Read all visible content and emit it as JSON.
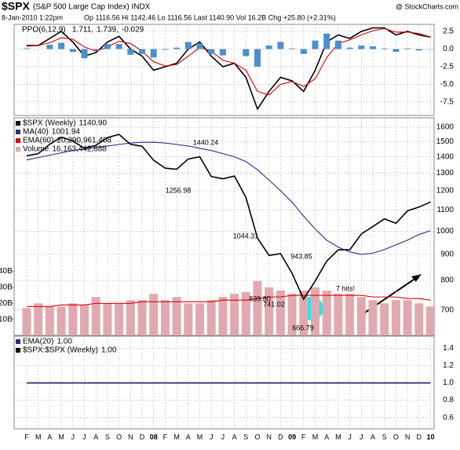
{
  "header": {
    "symbol": "$SPX",
    "name": "(S&P 500 Large Cap Index) INDX",
    "brand": "@ StockCharts.com",
    "date": "8-Jan-2010 1:22pm",
    "quote": "Op 1116.56 Hi 1142.46 Lo 1116.56 Last 1140.90 Vol 16.2B Chg +25.80 (+2.31%)"
  },
  "chart_data": [
    {
      "type": "line",
      "legend": "PPO(6,12,9)",
      "ylim": [
        -9.4,
        3.5
      ],
      "yticks": [
        2.5,
        {
          "value": 0,
          "label": "0.0"
        },
        -2.5,
        {
          "value": -5,
          "label": "-5.0"
        },
        -7.5
      ],
      "grid": true,
      "series": [
        {
          "name": "PPO",
          "last_label": "1.711,",
          "color": "#000000",
          "values": [
            0.5,
            0.5,
            1.5,
            2.5,
            1,
            -1,
            -0.5,
            1,
            1.8,
            0,
            -1,
            -3,
            -2.5,
            -2,
            0,
            1,
            -1,
            -2.5,
            -2,
            -4,
            -8.5,
            -6,
            -4,
            -4.5,
            -6,
            -3,
            1,
            2,
            1.5,
            2.5,
            3,
            3,
            2,
            2.5,
            2,
            1.7
          ]
        },
        {
          "name": "Signal",
          "last_label": "1.739,",
          "color": "#dd0000",
          "values": [
            0.4,
            0.5,
            0.9,
            1.6,
            1.4,
            0.3,
            -0.3,
            0.3,
            1.1,
            0.8,
            -0.3,
            -1.8,
            -2.4,
            -2.2,
            -1,
            0.2,
            -0.3,
            -1.6,
            -2,
            -3,
            -6,
            -6.5,
            -5,
            -4.6,
            -5.3,
            -4.2,
            -1.2,
            0.8,
            1.3,
            2,
            2.6,
            2.9,
            2.4,
            2.4,
            2.2,
            1.7
          ]
        },
        {
          "name": "Histogram",
          "type": "bar",
          "last_label": "-0.029",
          "color": "#4d8fcc",
          "values": [
            0.1,
            0,
            0.6,
            0.9,
            -0.4,
            -1.3,
            -0.2,
            0.7,
            0.7,
            -0.8,
            -0.7,
            -1.2,
            -0.1,
            0.2,
            1,
            0.8,
            -0.7,
            -0.9,
            0,
            -1,
            -2.5,
            0.5,
            1,
            0.1,
            -0.7,
            1.2,
            2.2,
            1.2,
            0.2,
            0.5,
            0.4,
            0.1,
            -0.4,
            0.1,
            -0.2,
            -0.03
          ]
        }
      ]
    },
    {
      "type": "line",
      "log": true,
      "ylim": [
        624,
        1670
      ],
      "yticks": [
        1600,
        1500,
        1400,
        1300,
        1200,
        1100,
        1000,
        900,
        800,
        700
      ],
      "grid": true,
      "y2lim": [
        0,
        136
      ],
      "y2ticks": [
        {
          "value": 40,
          "label": "40B"
        },
        {
          "value": 30,
          "label": "30B"
        },
        {
          "value": 20,
          "label": "20B"
        },
        {
          "value": 10,
          "label": "10B"
        }
      ],
      "annotations": [
        "1440.24",
        "1256.98",
        "1044.31",
        "943.85",
        "839.80",
        "741.02",
        "666.79",
        "7 hits!"
      ],
      "series": [
        {
          "name": "Volume",
          "type": "bar",
          "axis": "y2",
          "last_label": "16,163,442,688",
          "color": "#e0a9b0",
          "values": [
            17,
            20,
            18,
            18,
            20,
            19,
            24,
            20,
            20,
            22,
            22,
            26,
            22,
            24,
            20,
            20,
            22,
            24,
            26,
            27,
            34,
            30,
            28,
            26,
            28,
            30,
            28,
            26,
            26,
            24,
            22,
            20,
            22,
            22,
            20,
            18
          ]
        },
        {
          "name": "EMA(60)",
          "axis": "y2",
          "last_label": "20,290,961,408",
          "color": "#dd0000",
          "values": [
            18,
            18,
            18,
            19,
            19,
            19,
            20,
            20,
            20,
            20,
            21,
            21,
            21,
            21,
            21,
            21,
            21,
            22,
            22,
            22,
            23,
            24,
            24,
            25,
            25,
            25,
            25,
            25,
            25,
            25,
            24,
            24,
            24,
            23,
            23,
            22
          ]
        },
        {
          "name": "MA(40)",
          "last_label": "1001.94",
          "color": "#2a2a8c",
          "values": [
            1380,
            1395,
            1410,
            1425,
            1440,
            1450,
            1460,
            1470,
            1480,
            1490,
            1495,
            1495,
            1490,
            1480,
            1470,
            1455,
            1440,
            1420,
            1400,
            1370,
            1320,
            1260,
            1200,
            1140,
            1070,
            1010,
            960,
            930,
            910,
            900,
            905,
            920,
            940,
            960,
            985,
            1002
          ]
        },
        {
          "name": "$SPX (Weekly)",
          "last_label": "1140.90",
          "color": "#000000",
          "values": [
            1406,
            1420,
            1482,
            1530,
            1503,
            1455,
            1474,
            1527,
            1549,
            1481,
            1468,
            1378,
            1330,
            1323,
            1386,
            1400,
            1280,
            1267,
            1283,
            1165,
            969,
            896,
            903,
            826,
            735,
            798,
            873,
            919,
            919,
            987,
            1021,
            1057,
            1036,
            1096,
            1115,
            1141
          ]
        }
      ]
    },
    {
      "type": "line",
      "ylim": [
        0.47,
        1.54
      ],
      "yticks": [
        1.4,
        1.2,
        {
          "value": 1,
          "label": "1.0"
        },
        0.8,
        0.6
      ],
      "grid": true,
      "categories": [
        "F",
        "M",
        "A",
        "M",
        "J",
        "J",
        "A",
        "S",
        "O",
        "N",
        "D",
        "08",
        "F",
        "M",
        "A",
        "M",
        "J",
        "J",
        "A",
        "S",
        "O",
        "N",
        "D",
        "09",
        "F",
        "M",
        "A",
        "M",
        "J",
        "J",
        "A",
        "S",
        "O",
        "N",
        "D",
        "10"
      ],
      "series": [
        {
          "name": "$SPX:$SPX (Weekly)",
          "last_label": "1.00",
          "color": "#000000",
          "values": [
            1,
            1,
            1,
            1,
            1,
            1,
            1,
            1,
            1,
            1,
            1,
            1,
            1,
            1,
            1,
            1,
            1,
            1,
            1,
            1,
            1,
            1,
            1,
            1,
            1,
            1,
            1,
            1,
            1,
            1,
            1,
            1,
            1,
            1,
            1,
            1
          ]
        },
        {
          "name": "EMA(20)",
          "last_label": "1.00",
          "color": "#2a2a8c",
          "values": [
            1,
            1,
            1,
            1,
            1,
            1,
            1,
            1,
            1,
            1,
            1,
            1,
            1,
            1,
            1,
            1,
            1,
            1,
            1,
            1,
            1,
            1,
            1,
            1,
            1,
            1,
            1,
            1,
            1,
            1,
            1,
            1,
            1,
            1,
            1,
            1
          ]
        }
      ]
    }
  ]
}
